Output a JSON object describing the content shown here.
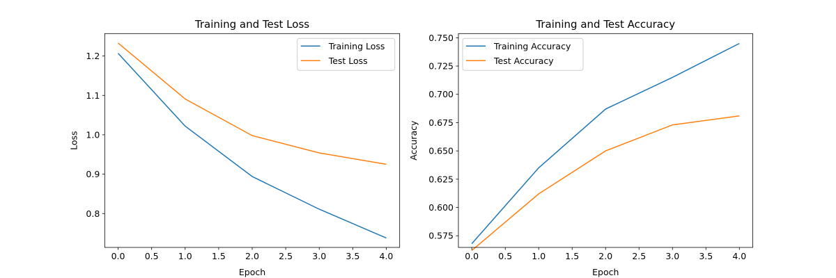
{
  "chart_data": [
    {
      "type": "line",
      "title": "Training and Test Loss",
      "xlabel": "Epoch",
      "ylabel": "Loss",
      "x": [
        0,
        1,
        2,
        3,
        4
      ],
      "xlim": [
        -0.2,
        4.2
      ],
      "ylim": [
        0.714,
        1.257
      ],
      "xticks": [
        0.0,
        0.5,
        1.0,
        1.5,
        2.0,
        2.5,
        3.0,
        3.5,
        4.0
      ],
      "yticks": [
        0.8,
        0.9,
        1.0,
        1.1,
        1.2
      ],
      "xtick_labels": [
        "0.0",
        "0.5",
        "1.0",
        "1.5",
        "2.0",
        "2.5",
        "3.0",
        "3.5",
        "4.0"
      ],
      "ytick_labels": [
        "0.8",
        "0.9",
        "1.0",
        "1.1",
        "1.2"
      ],
      "legend_position": "upper right",
      "grid": false,
      "series": [
        {
          "name": "Training Loss",
          "color": "#1f77b4",
          "values": [
            1.207,
            1.022,
            0.894,
            0.811,
            0.738
          ]
        },
        {
          "name": "Test Loss",
          "color": "#ff7f0e",
          "values": [
            1.233,
            1.091,
            0.998,
            0.954,
            0.925
          ]
        }
      ]
    },
    {
      "type": "line",
      "title": "Training and Test Accuracy",
      "xlabel": "Epoch",
      "ylabel": "Accuracy",
      "x": [
        0,
        1,
        2,
        3,
        4
      ],
      "xlim": [
        -0.2,
        4.2
      ],
      "ylim": [
        0.5647,
        0.7537
      ],
      "xticks": [
        0.0,
        0.5,
        1.0,
        1.5,
        2.0,
        2.5,
        3.0,
        3.5,
        4.0
      ],
      "yticks": [
        0.575,
        0.6,
        0.625,
        0.65,
        0.675,
        0.7,
        0.725,
        0.75
      ],
      "xtick_labels": [
        "0.0",
        "0.5",
        "1.0",
        "1.5",
        "2.0",
        "2.5",
        "3.0",
        "3.5",
        "4.0"
      ],
      "ytick_labels": [
        "0.575",
        "0.600",
        "0.625",
        "0.650",
        "0.675",
        "0.700",
        "0.725",
        "0.750"
      ],
      "legend_position": "upper left",
      "grid": false,
      "series": [
        {
          "name": "Training Accuracy",
          "color": "#1f77b4",
          "values": [
            0.568,
            0.635,
            0.687,
            0.715,
            0.745
          ]
        },
        {
          "name": "Test Accuracy",
          "color": "#ff7f0e",
          "values": [
            0.562,
            0.612,
            0.65,
            0.673,
            0.681
          ]
        }
      ]
    }
  ]
}
